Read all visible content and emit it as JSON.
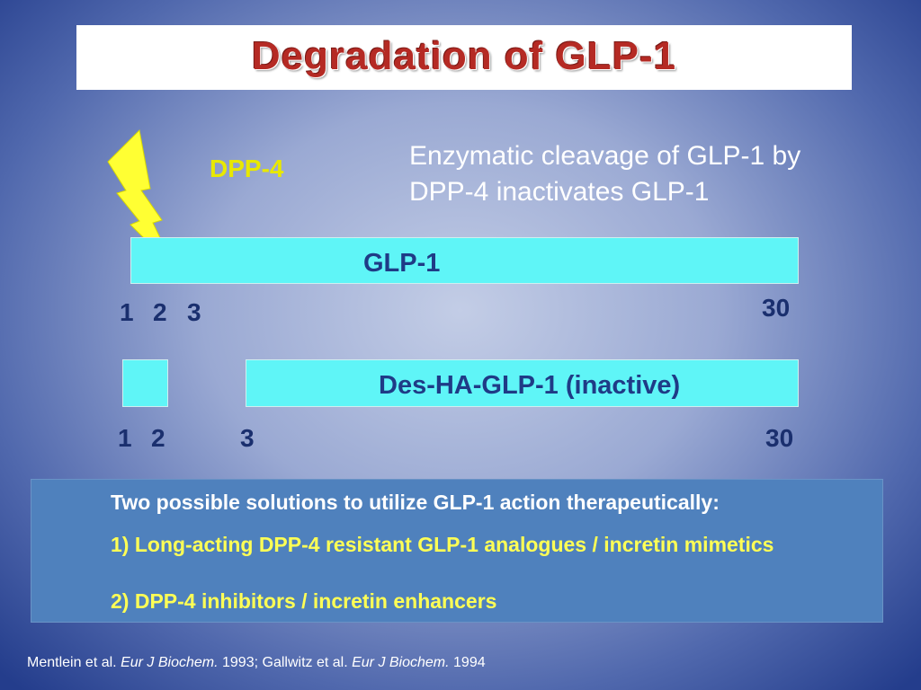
{
  "title": "Degradation of GLP-1",
  "enzyme_label": "DPP-4",
  "description": "Enzymatic cleavage of GLP-1 by DPP-4 inactivates GLP-1",
  "intact_peptide": {
    "label": "GLP-1",
    "positions": [
      1,
      2,
      3,
      30
    ]
  },
  "cleaved_peptide": {
    "label": "Des-HA-GLP-1 (inactive)",
    "positions": [
      1,
      2,
      3,
      30
    ]
  },
  "solutions": {
    "heading": "Two possible solutions to utilize GLP-1 action therapeutically:",
    "items": [
      "1)  Long-acting DPP-4 resistant GLP-1 analogues / incretin mimetics",
      "2)  DPP-4 inhibitors / incretin enhancers"
    ]
  },
  "citations": [
    {
      "authors": "Mentlein et al.",
      "journal": "Eur J Biochem.",
      "year": "1993;"
    },
    {
      "authors": "Gallwitz et al.",
      "journal": "Eur J Biochem.",
      "year": "1994"
    }
  ]
}
